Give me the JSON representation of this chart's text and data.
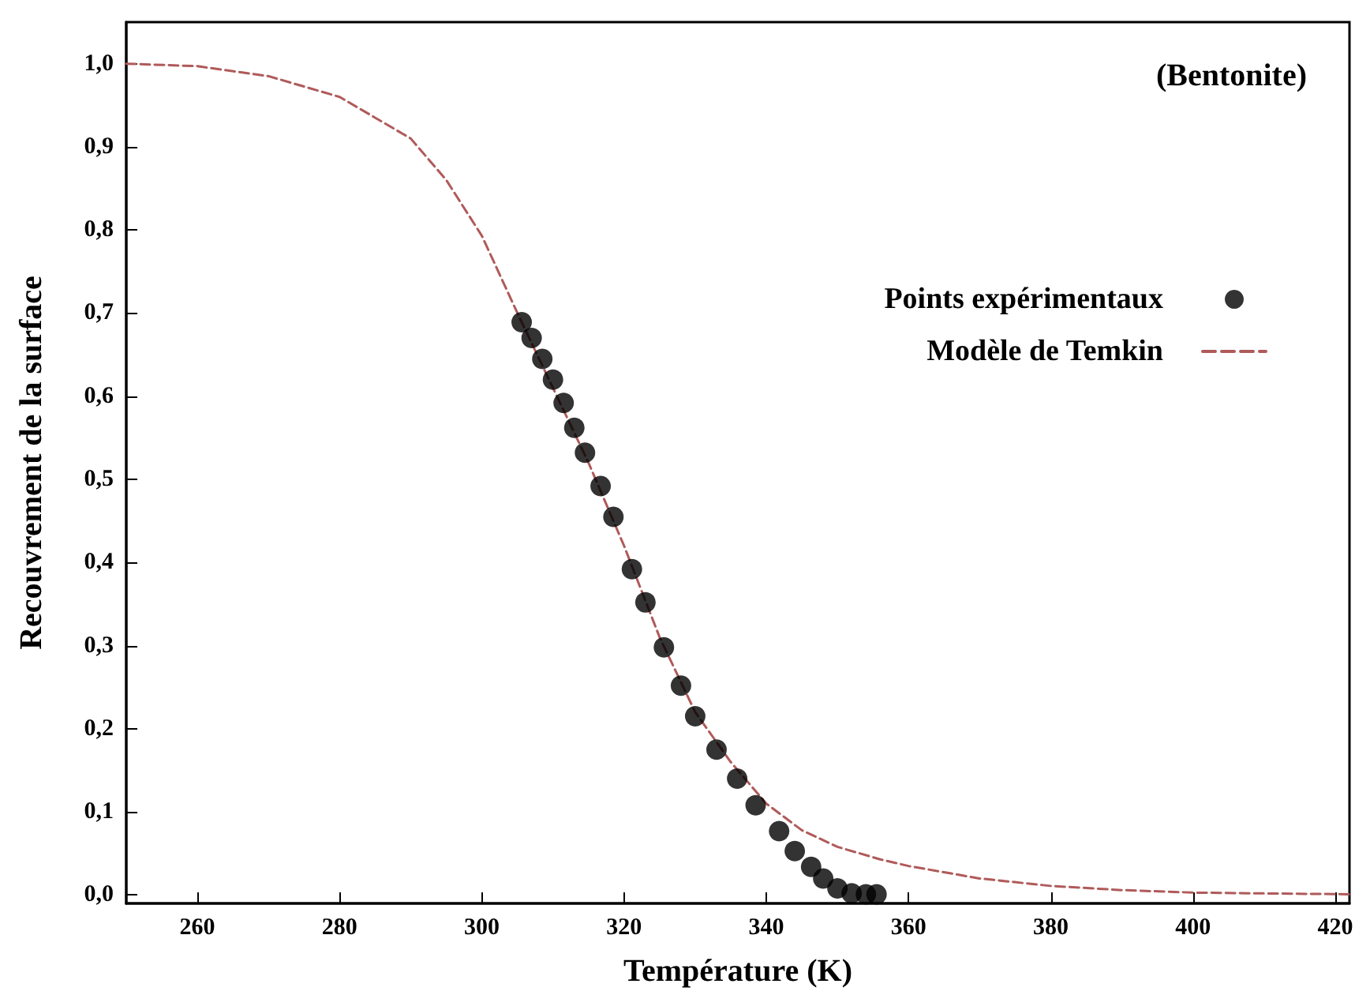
{
  "chart_data": {
    "type": "scatter",
    "xlabel": "Température (K)",
    "ylabel": "Recouvrement de la surface",
    "annotations": [
      "(Bentonite)"
    ],
    "xlim": [
      250,
      422
    ],
    "xticks": [
      260,
      280,
      300,
      320,
      340,
      360,
      380,
      400,
      420
    ],
    "ylim": [
      -0.01,
      1.05
    ],
    "yticks": [
      {
        "value": 0,
        "label": "0,0"
      },
      {
        "value": 0.1,
        "label": "0,1"
      },
      {
        "value": 0.2,
        "label": "0,2"
      },
      {
        "value": 0.3,
        "label": "0,3"
      },
      {
        "value": 0.4,
        "label": "0,4"
      },
      {
        "value": 0.5,
        "label": "0,5"
      },
      {
        "value": 0.6,
        "label": "0,6"
      },
      {
        "value": 0.7,
        "label": "0,7"
      },
      {
        "value": 0.8,
        "label": "0,8"
      },
      {
        "value": 0.9,
        "label": "0,9"
      },
      {
        "value": 1,
        "label": "1,0"
      }
    ],
    "grid": false,
    "legend": "top right",
    "series": [
      {
        "name": "Points expérimentaux",
        "marker": "circle",
        "color": "#000000",
        "x": [
          305.6,
          307,
          308.5,
          310,
          311.5,
          313,
          314.5,
          316.7,
          318.5,
          321.1,
          323,
          325.6,
          328,
          330,
          333,
          335.9,
          338.5,
          341.8,
          344,
          346.3,
          348,
          350,
          352,
          354,
          355.5
        ],
        "values": [
          0.689,
          0.67,
          0.645,
          0.62,
          0.592,
          0.562,
          0.532,
          0.492,
          0.455,
          0.392,
          0.352,
          0.298,
          0.252,
          0.215,
          0.175,
          0.14,
          0.108,
          0.077,
          0.053,
          0.034,
          0.02,
          0.008,
          0.002,
          0.001,
          0.001
        ]
      },
      {
        "name": "Modèle de Temkin",
        "type": "line",
        "marker": "none",
        "line_style": "dashed",
        "color": "#b05a5a",
        "x": [
          250,
          260,
          270,
          280,
          290,
          295,
          300,
          305,
          310,
          315,
          320,
          325,
          330,
          335,
          340,
          345,
          350,
          356,
          360,
          370,
          380,
          390,
          400,
          410,
          422
        ],
        "values": [
          1.0,
          0.997,
          0.985,
          0.96,
          0.91,
          0.86,
          0.793,
          0.7,
          0.61,
          0.52,
          0.42,
          0.31,
          0.22,
          0.16,
          0.11,
          0.078,
          0.058,
          0.043,
          0.035,
          0.02,
          0.011,
          0.006,
          0.003,
          0.002,
          0.001
        ]
      }
    ]
  }
}
